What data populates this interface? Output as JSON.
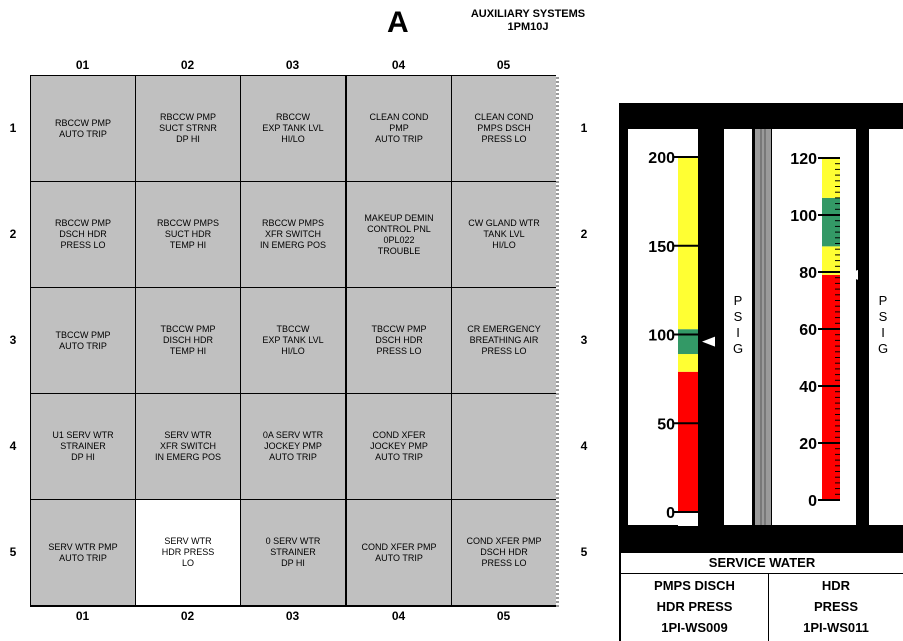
{
  "panel": {
    "letter": "A",
    "title_line1": "AUXILIARY SYSTEMS",
    "title_line2": "1PM10J"
  },
  "columns": [
    "01",
    "02",
    "03",
    "04",
    "05"
  ],
  "rows": [
    "1",
    "2",
    "3",
    "4",
    "5"
  ],
  "tiles": [
    [
      "RBCCW PMP\nAUTO TRIP",
      "RBCCW PMP\nSUCT STRNR\nDP HI",
      "RBCCW\nEXP TANK LVL\nHI/LO",
      "CLEAN COND\nPMP\nAUTO TRIP",
      "CLEAN COND\nPMPS DSCH\nPRESS LO"
    ],
    [
      "RBCCW PMP\nDSCH HDR\nPRESS LO",
      "RBCCW PMPS\nSUCT HDR\nTEMP HI",
      "RBCCW PMPS\nXFR SWITCH\nIN EMERG POS",
      "MAKEUP DEMIN\nCONTROL PNL\n0PL022\nTROUBLE",
      "CW GLAND WTR\nTANK LVL\nHI/LO"
    ],
    [
      "TBCCW PMP\nAUTO TRIP",
      "TBCCW PMP\nDISCH HDR\nTEMP HI",
      "TBCCW\nEXP TANK LVL\nHI/LO",
      "TBCCW PMP\nDSCH HDR\nPRESS LO",
      "CR EMERGENCY\nBREATHING AIR\nPRESS LO"
    ],
    [
      "U1 SERV WTR\nSTRAINER\nDP HI",
      "SERV WTR\nXFR SWITCH\nIN EMERG POS",
      "0A SERV WTR\nJOCKEY PMP\nAUTO TRIP",
      "COND XFER\nJOCKEY PMP\nAUTO TRIP",
      ""
    ],
    [
      "SERV WTR PMP\nAUTO TRIP",
      "SERV WTR\nHDR PRESS\nLO",
      "0 SERV WTR\nSTRAINER\nDP HI",
      "COND XFER PMP\nAUTO TRIP",
      "COND XFER PMP\nDSCH HDR\nPRESS LO"
    ]
  ],
  "lit_tile": {
    "row": 4,
    "col": 1
  },
  "meters": {
    "header": "SERVICE WATER",
    "left": {
      "label_line1": "PMPS DISCH",
      "label_line2": "HDR PRESS",
      "tag": "1PI-WS009",
      "unit_letters": [
        "P",
        "S",
        "I",
        "G"
      ],
      "scale_labels": [
        "200",
        "150",
        "100",
        "50",
        "0"
      ],
      "scale_min": 0,
      "scale_max": 200,
      "value": 96,
      "bands": [
        {
          "from": 0,
          "to": 79,
          "color": "#ff0000"
        },
        {
          "from": 79,
          "to": 89,
          "color": "#ffff33"
        },
        {
          "from": 89,
          "to": 103,
          "color": "#339966"
        },
        {
          "from": 103,
          "to": 200,
          "color": "#ffff33"
        }
      ]
    },
    "right": {
      "label_line1": "HDR",
      "label_line2": "PRESS",
      "tag": "1PI-WS011",
      "unit_letters": [
        "P",
        "S",
        "I",
        "G"
      ],
      "scale_labels": [
        "120",
        "100",
        "80",
        "60",
        "40",
        "20",
        "0"
      ],
      "scale_min": 0,
      "scale_max": 120,
      "value": 79,
      "bands": [
        {
          "from": 0,
          "to": 79,
          "color": "#ff0000"
        },
        {
          "from": 79,
          "to": 89,
          "color": "#ffff33"
        },
        {
          "from": 89,
          "to": 106,
          "color": "#339966"
        },
        {
          "from": 106,
          "to": 120,
          "color": "#ffff33"
        }
      ]
    }
  }
}
